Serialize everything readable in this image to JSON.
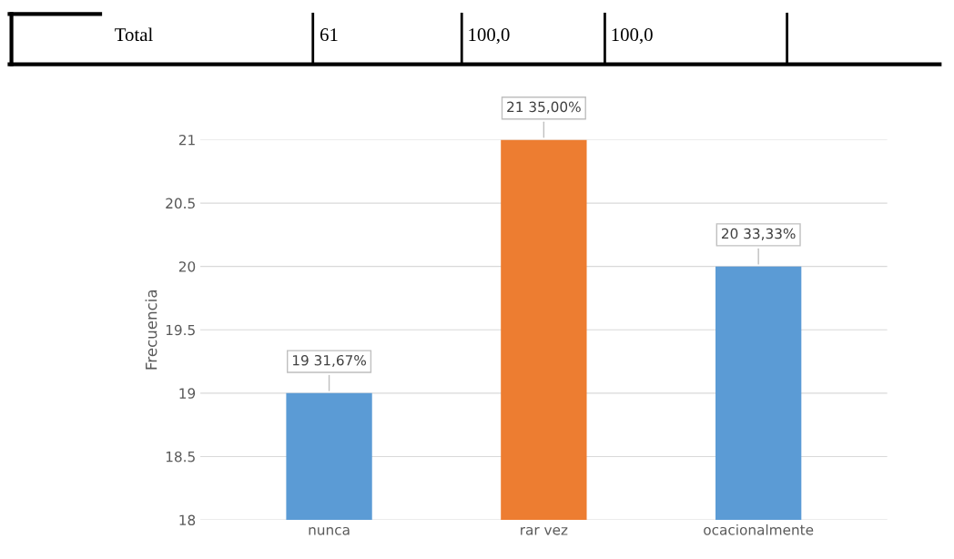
{
  "chart_data": {
    "type": "bar",
    "ylabel": "Frecuencia",
    "categories": [
      "nunca",
      "rar vez",
      "ocacionalmente"
    ],
    "values": [
      19,
      21,
      20
    ],
    "colors": [
      "#5b9bd5",
      "#ed7d31",
      "#5b9bd5"
    ],
    "value_labels": [
      "19 31,67%",
      "21 35,00%",
      "20 33,33%"
    ],
    "ylim": [
      18,
      21
    ],
    "yticks": [
      18,
      18.5,
      19,
      19.5,
      20,
      20.5,
      21
    ],
    "grid": "y",
    "annotations": [
      "Total",
      "61",
      "100,0",
      "100,0"
    ]
  }
}
